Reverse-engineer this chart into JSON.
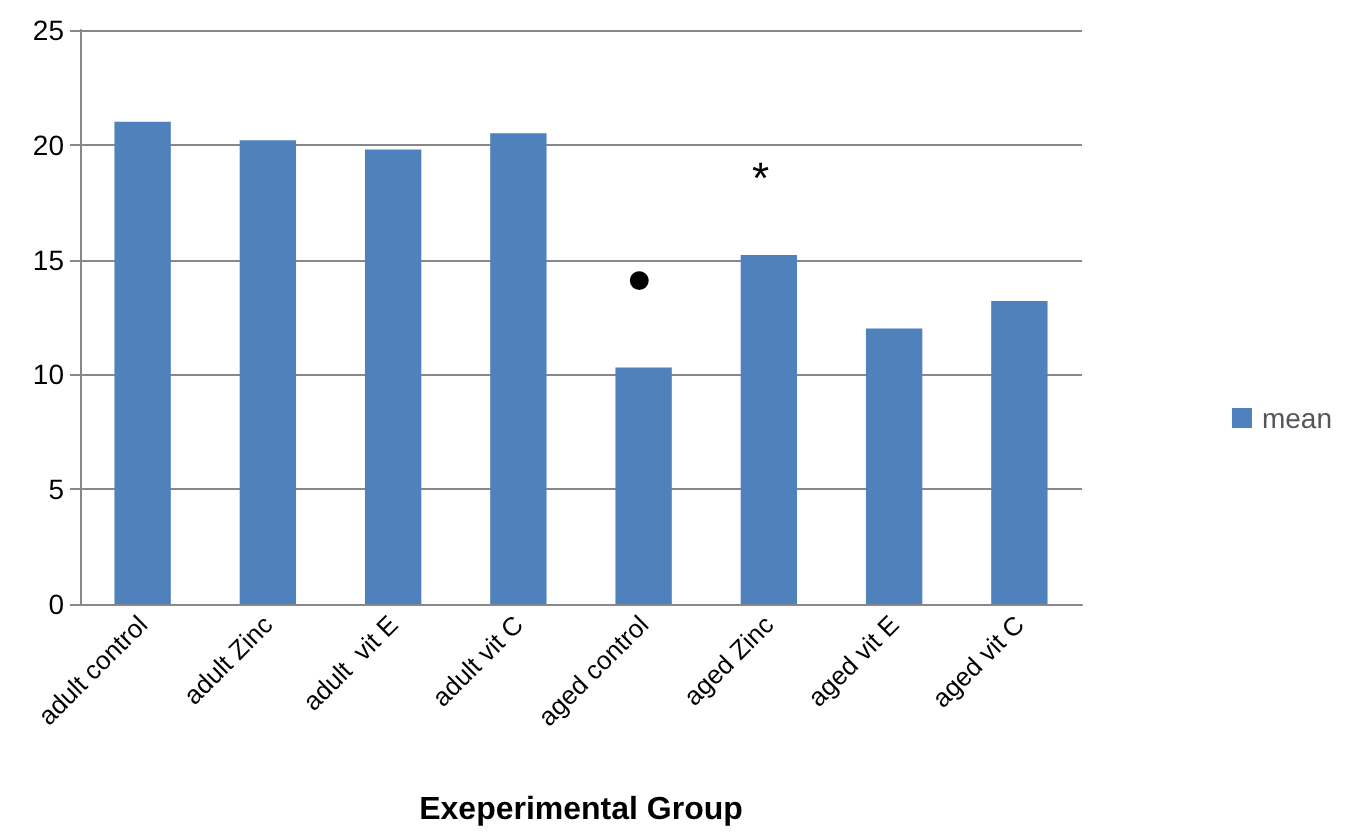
{
  "chart_data": {
    "type": "bar",
    "xlabel": "Exeperimental Group",
    "categories": [
      "adult control",
      "adult Zinc",
      "adult  vit E",
      "adult vit C",
      "aged control",
      "aged Zinc",
      "aged vit E",
      "aged vit C"
    ],
    "series": [
      {
        "name": "mean",
        "color": "#4f81bd",
        "values": [
          21,
          20.2,
          19.8,
          20.5,
          10.3,
          15.2,
          12,
          13.2
        ]
      }
    ],
    "ylim": [
      0,
      25
    ],
    "yticks": [
      0,
      5,
      10,
      15,
      20,
      25
    ],
    "grid": "y",
    "legend": "right",
    "annotations": [
      "●",
      "*"
    ]
  }
}
